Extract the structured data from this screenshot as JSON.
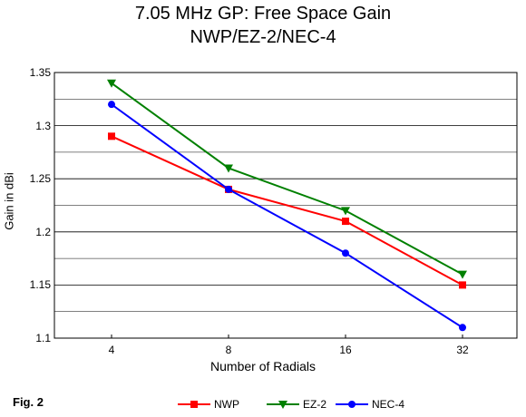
{
  "chart_data": {
    "type": "line",
    "title": "7.05 MHz GP:  Free Space Gain",
    "subtitle": "NWP/EZ-2/NEC-4",
    "xlabel": "Number of Radials",
    "ylabel": "Gain in dBi",
    "categories": [
      "4",
      "8",
      "16",
      "32"
    ],
    "ylim": [
      1.1,
      1.35
    ],
    "yticks": [
      "1.1",
      "1.15",
      "1.2",
      "1.25",
      "1.3",
      "1.35"
    ],
    "grid": true,
    "legend_position": "bottom",
    "series": [
      {
        "name": "NWP",
        "values": [
          1.29,
          1.24,
          1.21,
          1.15
        ],
        "color": "#ff0000",
        "marker": "square"
      },
      {
        "name": "EZ-2",
        "values": [
          1.34,
          1.26,
          1.22,
          1.16
        ],
        "color": "#008000",
        "marker": "triangle-down"
      },
      {
        "name": "NEC-4",
        "values": [
          1.32,
          1.24,
          1.18,
          1.11
        ],
        "color": "#0000ff",
        "marker": "circle"
      }
    ],
    "annotation": "Fig. 2"
  }
}
